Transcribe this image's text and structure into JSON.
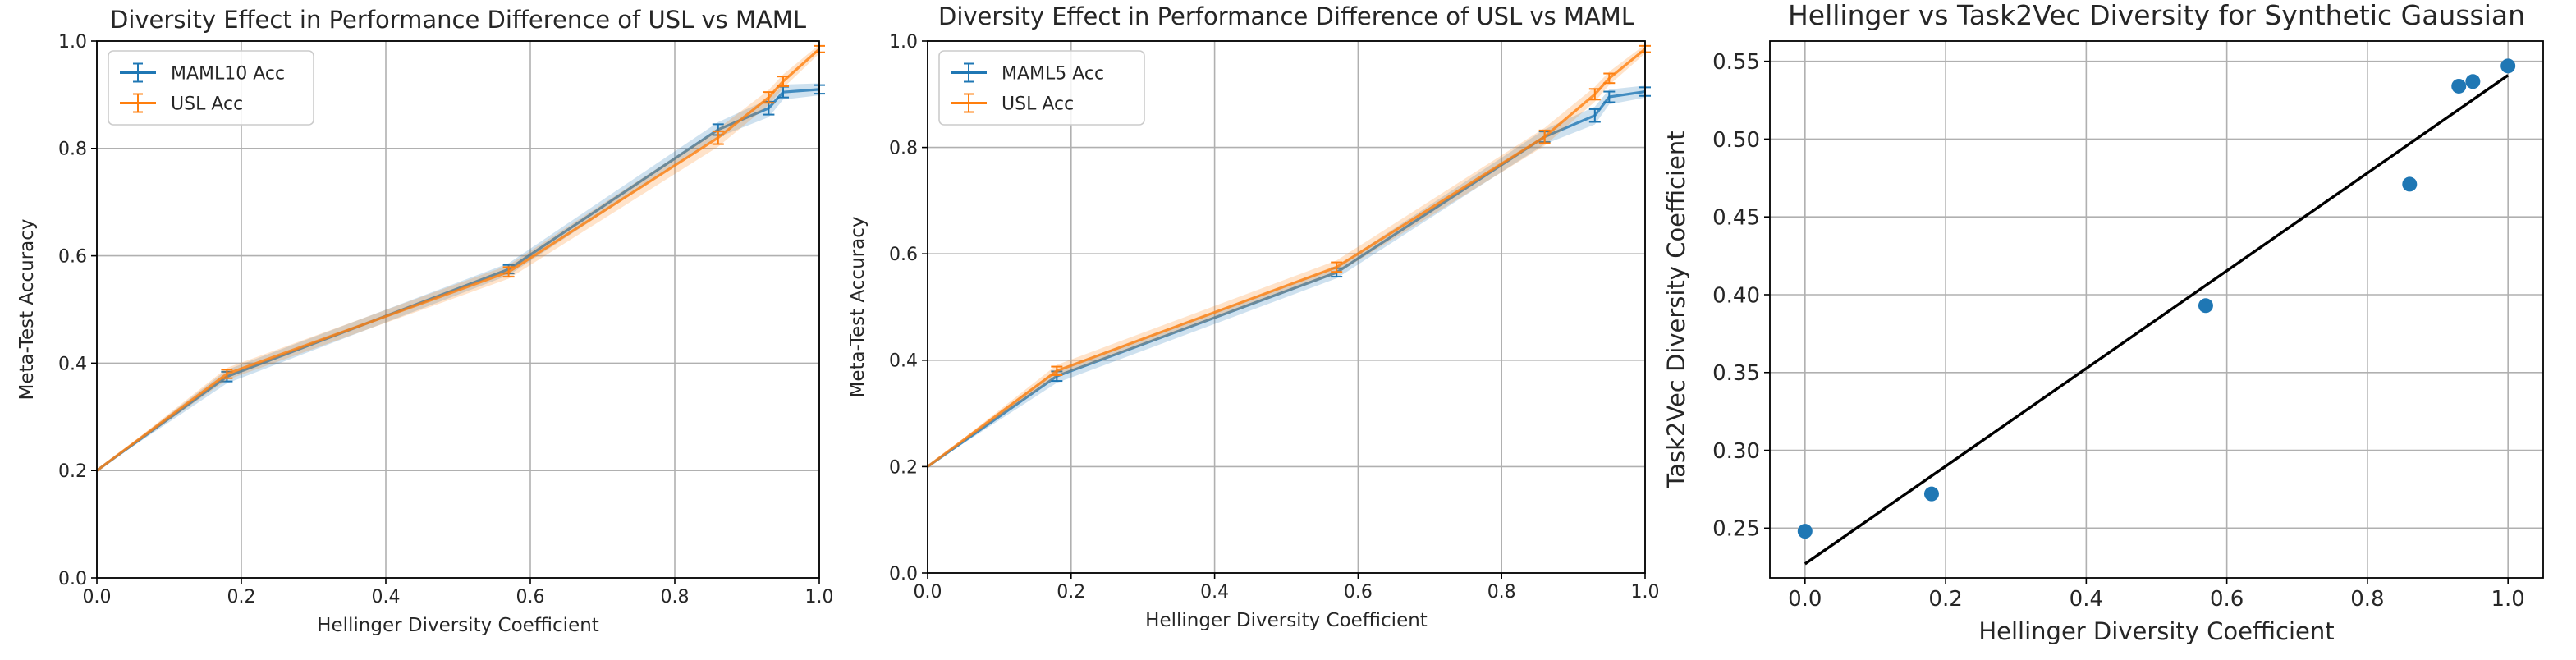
{
  "chart_data": [
    {
      "type": "line",
      "title": "Diversity Effect in Performance Difference of USL vs MAML",
      "xlabel": "Hellinger Diversity Coefficient",
      "ylabel": "Meta-Test Accuracy",
      "xlim": [
        0,
        1
      ],
      "ylim": [
        0,
        1
      ],
      "xticks": [
        "0.0",
        "0.2",
        "0.4",
        "0.6",
        "0.8",
        "1.0"
      ],
      "yticks": [
        "0.0",
        "0.2",
        "0.4",
        "0.6",
        "0.8",
        "1.0"
      ],
      "legend_position": "top-left",
      "grid": true,
      "series": [
        {
          "name": "MAML10 Acc",
          "color": "#1f77b4",
          "x": [
            0.0,
            0.18,
            0.57,
            0.86,
            0.93,
            0.95,
            1.0
          ],
          "values": [
            0.2,
            0.375,
            0.575,
            0.835,
            0.875,
            0.905,
            0.91
          ],
          "errors": [
            0.0,
            0.009,
            0.008,
            0.01,
            0.012,
            0.01,
            0.008
          ]
        },
        {
          "name": "USL Acc",
          "color": "#ff7f0e",
          "x": [
            0.0,
            0.18,
            0.57,
            0.86,
            0.93,
            0.95,
            1.0
          ],
          "values": [
            0.2,
            0.38,
            0.57,
            0.82,
            0.895,
            0.925,
            0.985
          ],
          "errors": [
            0.0,
            0.008,
            0.009,
            0.012,
            0.01,
            0.009,
            0.006
          ]
        }
      ]
    },
    {
      "type": "line",
      "title": "Diversity Effect in Performance Difference of USL vs MAML",
      "xlabel": "Hellinger Diversity Coefficient",
      "ylabel": "Meta-Test Accuracy",
      "xlim": [
        0,
        1
      ],
      "ylim": [
        0,
        1
      ],
      "xticks": [
        "0.0",
        "0.2",
        "0.4",
        "0.6",
        "0.8",
        "1.0"
      ],
      "yticks": [
        "0.0",
        "0.2",
        "0.4",
        "0.6",
        "0.8",
        "1.0"
      ],
      "legend_position": "top-left",
      "grid": true,
      "series": [
        {
          "name": "MAML5 Acc",
          "color": "#1f77b4",
          "x": [
            0.0,
            0.18,
            0.57,
            0.86,
            0.93,
            0.95,
            1.0
          ],
          "values": [
            0.2,
            0.37,
            0.565,
            0.82,
            0.86,
            0.895,
            0.905
          ],
          "errors": [
            0.0,
            0.009,
            0.008,
            0.01,
            0.012,
            0.01,
            0.008
          ]
        },
        {
          "name": "USL Acc",
          "color": "#ff7f0e",
          "x": [
            0.0,
            0.18,
            0.57,
            0.86,
            0.93,
            0.95,
            1.0
          ],
          "values": [
            0.2,
            0.38,
            0.575,
            0.82,
            0.9,
            0.93,
            0.985
          ],
          "errors": [
            0.0,
            0.008,
            0.009,
            0.012,
            0.01,
            0.009,
            0.006
          ]
        }
      ]
    },
    {
      "type": "scatter",
      "title": "Hellinger vs Task2Vec Diversity for Synthetic Gaussian",
      "xlabel": "Hellinger Diversity Coefficient",
      "ylabel": "Task2Vec Diversity Coefficient",
      "xlim": [
        -0.05,
        1.05
      ],
      "ylim": [
        0.218,
        0.563
      ],
      "xticks": [
        "0.0",
        "0.2",
        "0.4",
        "0.6",
        "0.8",
        "1.0"
      ],
      "yticks": [
        "0.25",
        "0.30",
        "0.35",
        "0.40",
        "0.45",
        "0.50",
        "0.55"
      ],
      "grid": true,
      "points": {
        "color": "#1f77b4",
        "x": [
          0.0,
          0.18,
          0.57,
          0.86,
          0.93,
          0.95,
          1.0
        ],
        "y": [
          0.248,
          0.272,
          0.393,
          0.471,
          0.534,
          0.537,
          0.547
        ]
      },
      "fit_line": {
        "color": "#000000",
        "x": [
          0.0,
          1.0
        ],
        "y": [
          0.227,
          0.541
        ]
      }
    }
  ]
}
